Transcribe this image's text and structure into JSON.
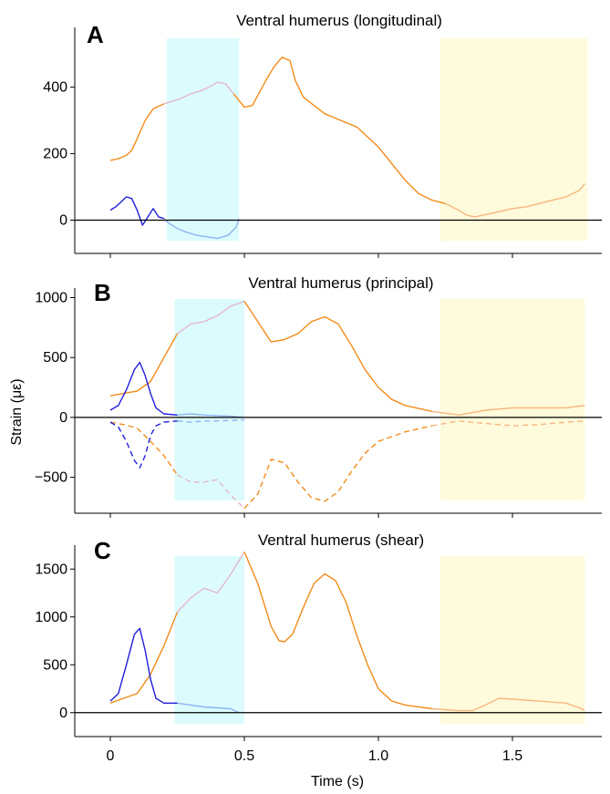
{
  "colors": {
    "orange": "#f28c1a",
    "orange_light": "#f7b67e",
    "pink": "#e3b8c9",
    "blue": "#1f1fd9",
    "blue_light": "#8eb4f0",
    "cyan_band": "#dcfbfd",
    "yellow_band": "#fefbdc",
    "axis": "#000000"
  },
  "figure": {
    "ylabel": "Strain (με)",
    "xlabel": "Time (s)",
    "xticks": [
      "0",
      "0.5",
      "1.0",
      "1.5"
    ]
  },
  "chart_data": [
    {
      "type": "line",
      "letter": "A",
      "title": "Ventral humerus (longitudinal)",
      "xlim": [
        -0.05,
        1.8
      ],
      "ylim": [
        -100,
        580
      ],
      "yticks": [
        "0",
        "200",
        "400"
      ],
      "ytick_values": [
        0,
        200,
        400
      ],
      "bands": [
        {
          "color": "cyan",
          "x": [
            0.21,
            0.48
          ]
        },
        {
          "color": "yellow",
          "x": [
            1.23,
            1.78
          ]
        }
      ],
      "series": [
        {
          "line": "orange",
          "style": "solid",
          "x": [
            0,
            0.03,
            0.06,
            0.08,
            0.1,
            0.13,
            0.16,
            0.2,
            0.22,
            0.26,
            0.3,
            0.34,
            0.38,
            0.4,
            0.43,
            0.46,
            0.5,
            0.53,
            0.56,
            0.58,
            0.61,
            0.64,
            0.67,
            0.69,
            0.72,
            0.76,
            0.8,
            0.86,
            0.92,
            1.0,
            1.05,
            1.1,
            1.15,
            1.2,
            1.25,
            1.3,
            1.33,
            1.36,
            1.42,
            1.5,
            1.55,
            1.6,
            1.65,
            1.7,
            1.75,
            1.77
          ],
          "y": [
            180,
            185,
            195,
            210,
            245,
            300,
            335,
            350,
            355,
            365,
            380,
            390,
            405,
            415,
            410,
            380,
            340,
            345,
            390,
            420,
            460,
            490,
            480,
            420,
            370,
            345,
            320,
            300,
            280,
            220,
            170,
            120,
            80,
            60,
            50,
            30,
            15,
            10,
            20,
            35,
            40,
            50,
            60,
            70,
            90,
            110
          ]
        },
        {
          "line": "blue",
          "style": "solid",
          "x": [
            0,
            0.02,
            0.04,
            0.06,
            0.08,
            0.1,
            0.12,
            0.14,
            0.16,
            0.18,
            0.2,
            0.22,
            0.25,
            0.28,
            0.32,
            0.36,
            0.4,
            0.44,
            0.47,
            0.48
          ],
          "y": [
            30,
            40,
            55,
            70,
            65,
            30,
            -15,
            10,
            35,
            10,
            5,
            -10,
            -25,
            -35,
            -45,
            -50,
            -55,
            -45,
            -20,
            5
          ]
        }
      ]
    },
    {
      "type": "line",
      "letter": "B",
      "title": "Ventral humerus (principal)",
      "xlim": [
        -0.05,
        1.8
      ],
      "ylim": [
        -800,
        1080
      ],
      "yticks": [
        "−500",
        "0",
        "500",
        "1000"
      ],
      "ytick_values": [
        -500,
        0,
        500,
        1000
      ],
      "bands": [
        {
          "color": "cyan",
          "x": [
            0.24,
            0.5
          ]
        },
        {
          "color": "yellow",
          "x": [
            1.23,
            1.77
          ]
        }
      ],
      "series": [
        {
          "line": "orange",
          "style": "solid",
          "x": [
            0,
            0.05,
            0.1,
            0.15,
            0.2,
            0.25,
            0.3,
            0.35,
            0.4,
            0.45,
            0.5,
            0.55,
            0.6,
            0.65,
            0.7,
            0.75,
            0.8,
            0.85,
            0.9,
            0.95,
            1.0,
            1.05,
            1.1,
            1.2,
            1.3,
            1.4,
            1.5,
            1.6,
            1.7,
            1.77
          ],
          "y": [
            180,
            200,
            220,
            300,
            500,
            700,
            780,
            800,
            850,
            930,
            970,
            800,
            630,
            650,
            700,
            800,
            840,
            780,
            600,
            400,
            250,
            150,
            100,
            50,
            20,
            60,
            80,
            80,
            80,
            100
          ]
        },
        {
          "line": "orange",
          "style": "dashed",
          "x": [
            0,
            0.05,
            0.1,
            0.15,
            0.2,
            0.25,
            0.3,
            0.35,
            0.4,
            0.45,
            0.5,
            0.55,
            0.6,
            0.65,
            0.7,
            0.75,
            0.8,
            0.85,
            0.9,
            0.95,
            1.0,
            1.1,
            1.2,
            1.3,
            1.4,
            1.5,
            1.6,
            1.7,
            1.77
          ],
          "y": [
            -40,
            -60,
            -90,
            -200,
            -320,
            -480,
            -540,
            -540,
            -520,
            -650,
            -760,
            -640,
            -350,
            -380,
            -540,
            -670,
            -700,
            -620,
            -450,
            -300,
            -200,
            -120,
            -70,
            -30,
            -50,
            -70,
            -60,
            -40,
            -30
          ]
        },
        {
          "line": "blue",
          "style": "solid",
          "x": [
            0,
            0.03,
            0.06,
            0.09,
            0.11,
            0.13,
            0.15,
            0.17,
            0.2,
            0.25,
            0.3,
            0.35,
            0.4,
            0.45,
            0.5
          ],
          "y": [
            60,
            100,
            230,
            400,
            460,
            350,
            200,
            80,
            30,
            20,
            30,
            20,
            15,
            10,
            0
          ]
        },
        {
          "line": "blue",
          "style": "dashed",
          "x": [
            0,
            0.03,
            0.06,
            0.09,
            0.11,
            0.13,
            0.15,
            0.17,
            0.2,
            0.25,
            0.3,
            0.35,
            0.4,
            0.45,
            0.5
          ],
          "y": [
            -40,
            -80,
            -200,
            -360,
            -420,
            -320,
            -150,
            -70,
            -40,
            -30,
            -40,
            -30,
            -30,
            -25,
            -20
          ]
        }
      ]
    },
    {
      "type": "line",
      "letter": "C",
      "title": "Ventral humerus (shear)",
      "xlim": [
        -0.05,
        1.8
      ],
      "ylim": [
        -250,
        1750
      ],
      "yticks": [
        "0",
        "500",
        "1000",
        "1500"
      ],
      "ytick_values": [
        0,
        500,
        1000,
        1500
      ],
      "bands": [
        {
          "color": "cyan",
          "x": [
            0.24,
            0.5
          ]
        },
        {
          "color": "yellow",
          "x": [
            1.23,
            1.77
          ]
        }
      ],
      "series": [
        {
          "line": "orange",
          "style": "solid",
          "x": [
            0,
            0.05,
            0.1,
            0.15,
            0.2,
            0.25,
            0.3,
            0.35,
            0.4,
            0.45,
            0.5,
            0.55,
            0.6,
            0.63,
            0.65,
            0.68,
            0.72,
            0.76,
            0.8,
            0.84,
            0.88,
            0.92,
            0.96,
            1.0,
            1.05,
            1.1,
            1.2,
            1.3,
            1.35,
            1.4,
            1.45,
            1.5,
            1.6,
            1.7,
            1.75,
            1.77
          ],
          "y": [
            100,
            150,
            200,
            400,
            700,
            1050,
            1200,
            1300,
            1250,
            1450,
            1680,
            1350,
            900,
            750,
            740,
            820,
            1100,
            1350,
            1450,
            1380,
            1150,
            800,
            500,
            250,
            120,
            80,
            40,
            20,
            20,
            80,
            150,
            140,
            120,
            100,
            50,
            20
          ]
        },
        {
          "line": "blue",
          "style": "solid",
          "x": [
            0,
            0.03,
            0.06,
            0.09,
            0.11,
            0.13,
            0.15,
            0.17,
            0.2,
            0.25,
            0.3,
            0.35,
            0.4,
            0.45,
            0.48
          ],
          "y": [
            120,
            200,
            500,
            820,
            880,
            650,
            350,
            150,
            100,
            100,
            80,
            60,
            50,
            40,
            0
          ]
        }
      ]
    }
  ]
}
